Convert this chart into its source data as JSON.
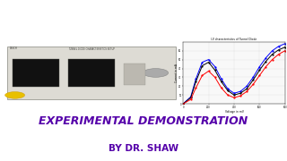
{
  "title_text": "I-V characteristics of Tunnel Diode",
  "title_bg": "#c8302a",
  "title_color": "#ffffff",
  "overall_bg": "#ffffff",
  "demo_text": "EXPERIMENTAL DEMONSTRATION",
  "by_text": "BY DR. SHAW",
  "demo_color": "#5500aa",
  "by_color": "#5500aa",
  "graph_title": "I-V characteristics of Tunnel Diode",
  "graph_xlabel": "Voltage in mV",
  "graph_ylabel": "Current in mA",
  "voltage": [
    0,
    60,
    100,
    150,
    200,
    250,
    300,
    350,
    400,
    450,
    500,
    550,
    600,
    650,
    700,
    750,
    800
  ],
  "current_blue": [
    0,
    8,
    28,
    47,
    50,
    42,
    28,
    17,
    12,
    14,
    20,
    30,
    42,
    52,
    60,
    65,
    68
  ],
  "current_black": [
    0,
    7,
    25,
    43,
    47,
    38,
    25,
    15,
    10,
    12,
    17,
    27,
    38,
    48,
    56,
    61,
    64
  ],
  "current_red": [
    0,
    5,
    18,
    32,
    37,
    30,
    18,
    10,
    7,
    9,
    14,
    22,
    32,
    42,
    50,
    56,
    60
  ],
  "ylim": [
    0,
    70
  ],
  "xlim": [
    0,
    800
  ],
  "yticks": [
    0,
    10,
    20,
    30,
    40,
    50,
    60
  ],
  "xticks": [
    0,
    200,
    400,
    600,
    800
  ],
  "equip_bg": "#d0cfc8",
  "equip_body": "#c8c5bc",
  "equip_panel": "#dddbd4",
  "display_color": "#111111",
  "yellow_btn": "#e8c000"
}
